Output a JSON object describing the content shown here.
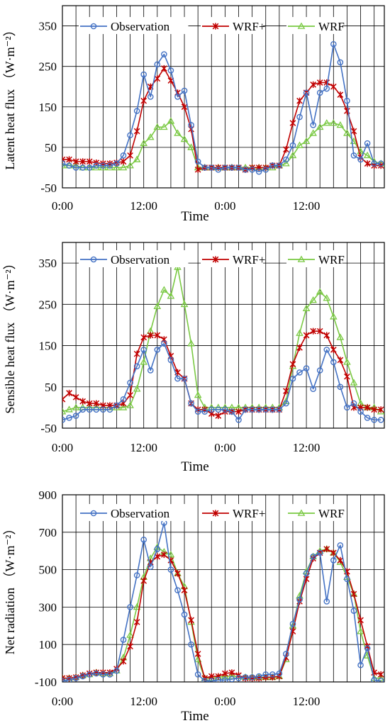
{
  "figure": {
    "colors": {
      "observation": "#4472C4",
      "wrf_plus": "#C00000",
      "wrf": "#7AC943",
      "axis": "#000000",
      "grid": "#000000"
    }
  },
  "chart_data": [
    {
      "type": "line",
      "ylabel": "Latent heat flux （W·m⁻²）",
      "xlabel": "Time",
      "x_tick_labels": [
        "0:00",
        "12:00",
        "0:00",
        "12:00"
      ],
      "x_tick_hours": [
        0,
        12,
        24,
        36
      ],
      "xlim": [
        0,
        47.5
      ],
      "ylim": [
        -50,
        400
      ],
      "y_ticks": [
        -50,
        50,
        150,
        250,
        350
      ],
      "grid": true,
      "legend": "top",
      "series": [
        {
          "name": "Observation",
          "marker": "circle",
          "values": [
            10,
            5,
            0,
            0,
            0,
            5,
            5,
            5,
            10,
            30,
            80,
            140,
            230,
            175,
            255,
            280,
            240,
            175,
            190,
            105,
            15,
            0,
            0,
            -5,
            0,
            0,
            0,
            -5,
            -5,
            -10,
            -5,
            5,
            5,
            20,
            55,
            125,
            185,
            105,
            185,
            195,
            305,
            260,
            165,
            30,
            20,
            60,
            10,
            10
          ]
        },
        {
          "name": "WRF+",
          "marker": "x",
          "values": [
            20,
            20,
            15,
            15,
            15,
            12,
            10,
            10,
            12,
            15,
            30,
            90,
            165,
            200,
            220,
            245,
            215,
            185,
            150,
            95,
            -5,
            0,
            0,
            0,
            0,
            0,
            0,
            -5,
            0,
            0,
            0,
            5,
            5,
            45,
            110,
            165,
            185,
            205,
            210,
            210,
            200,
            180,
            140,
            90,
            25,
            10,
            5,
            5
          ]
        },
        {
          "name": "WRF",
          "marker": "triangle",
          "values": [
            5,
            5,
            5,
            0,
            0,
            0,
            0,
            0,
            0,
            0,
            5,
            20,
            60,
            75,
            100,
            100,
            115,
            85,
            70,
            50,
            0,
            0,
            0,
            0,
            0,
            0,
            0,
            0,
            0,
            0,
            0,
            0,
            5,
            10,
            30,
            55,
            65,
            85,
            100,
            110,
            110,
            105,
            85,
            65,
            40,
            30,
            15,
            10
          ]
        }
      ]
    },
    {
      "type": "line",
      "ylabel": "Sensible heat flux （W·m⁻²）",
      "xlabel": "Time",
      "x_tick_labels": [
        "0:00",
        "12:00",
        "0:00",
        "12:00"
      ],
      "x_tick_hours": [
        0,
        12,
        24,
        36
      ],
      "xlim": [
        0,
        47.5
      ],
      "ylim": [
        -50,
        400
      ],
      "y_ticks": [
        -50,
        50,
        150,
        250,
        350
      ],
      "grid": true,
      "legend": "top",
      "series": [
        {
          "name": "Observation",
          "marker": "circle",
          "values": [
            -30,
            -25,
            -20,
            -5,
            -5,
            -5,
            -5,
            -5,
            5,
            20,
            60,
            100,
            140,
            90,
            140,
            155,
            115,
            70,
            70,
            10,
            -10,
            -10,
            -5,
            -5,
            -5,
            -10,
            -30,
            -5,
            -5,
            -5,
            -5,
            -5,
            -5,
            10,
            70,
            85,
            95,
            45,
            90,
            140,
            110,
            50,
            0,
            10,
            -10,
            -25,
            -30,
            -30
          ]
        },
        {
          "name": "WRF+",
          "marker": "x",
          "values": [
            20,
            35,
            25,
            15,
            10,
            10,
            5,
            5,
            5,
            10,
            30,
            130,
            170,
            175,
            175,
            165,
            125,
            85,
            70,
            10,
            -5,
            -5,
            -15,
            -20,
            -10,
            -10,
            -10,
            -5,
            -5,
            -5,
            -5,
            -5,
            -5,
            40,
            105,
            145,
            175,
            185,
            185,
            175,
            140,
            115,
            75,
            0,
            0,
            0,
            -5,
            -5
          ]
        },
        {
          "name": "WRF",
          "marker": "triangle",
          "values": [
            -10,
            -5,
            0,
            0,
            0,
            0,
            0,
            0,
            0,
            0,
            5,
            45,
            110,
            185,
            245,
            285,
            270,
            340,
            250,
            155,
            30,
            0,
            0,
            0,
            0,
            0,
            0,
            0,
            0,
            0,
            0,
            0,
            0,
            15,
            100,
            180,
            240,
            260,
            280,
            265,
            220,
            170,
            110,
            60,
            10,
            0,
            0,
            -10
          ]
        }
      ]
    },
    {
      "type": "line",
      "ylabel": "Net radiation （W·m⁻²）",
      "xlabel": "Time",
      "x_tick_labels": [
        "0:00",
        "12:00",
        "0:00",
        "12:00"
      ],
      "x_tick_hours": [
        0,
        12,
        24,
        36
      ],
      "xlim": [
        0,
        47.5
      ],
      "ylim": [
        -100,
        900
      ],
      "y_ticks": [
        -100,
        100,
        300,
        500,
        700,
        900
      ],
      "grid": true,
      "legend": "top",
      "series": [
        {
          "name": "Observation",
          "marker": "circle",
          "values": [
            -95,
            -90,
            -80,
            -70,
            -60,
            -55,
            -60,
            -60,
            -40,
            125,
            300,
            470,
            660,
            515,
            610,
            750,
            500,
            390,
            260,
            100,
            -60,
            -95,
            -95,
            -90,
            -90,
            -85,
            -80,
            -75,
            -75,
            -70,
            -60,
            -60,
            -55,
            50,
            210,
            340,
            480,
            570,
            590,
            330,
            550,
            630,
            450,
            280,
            -10,
            80,
            -90,
            -95
          ]
        },
        {
          "name": "WRF+",
          "marker": "x",
          "values": [
            -80,
            -80,
            -75,
            -65,
            -55,
            -50,
            -50,
            -50,
            -30,
            10,
            90,
            220,
            440,
            540,
            570,
            580,
            550,
            480,
            390,
            230,
            50,
            -80,
            -70,
            -70,
            -55,
            -50,
            -65,
            -80,
            -80,
            -80,
            -75,
            -75,
            -70,
            30,
            170,
            330,
            450,
            560,
            590,
            610,
            590,
            550,
            490,
            370,
            230,
            90,
            -50,
            -60
          ]
        },
        {
          "name": "WRF",
          "marker": "triangle",
          "values": [
            -80,
            -80,
            -75,
            -65,
            -60,
            -50,
            -55,
            -55,
            -40,
            30,
            150,
            300,
            460,
            560,
            620,
            595,
            580,
            480,
            410,
            220,
            20,
            -80,
            -80,
            -75,
            -70,
            -70,
            -70,
            -75,
            -75,
            -75,
            -75,
            -75,
            -70,
            20,
            200,
            360,
            490,
            570,
            600,
            610,
            590,
            540,
            460,
            370,
            170,
            40,
            -80,
            -80
          ]
        }
      ]
    }
  ]
}
